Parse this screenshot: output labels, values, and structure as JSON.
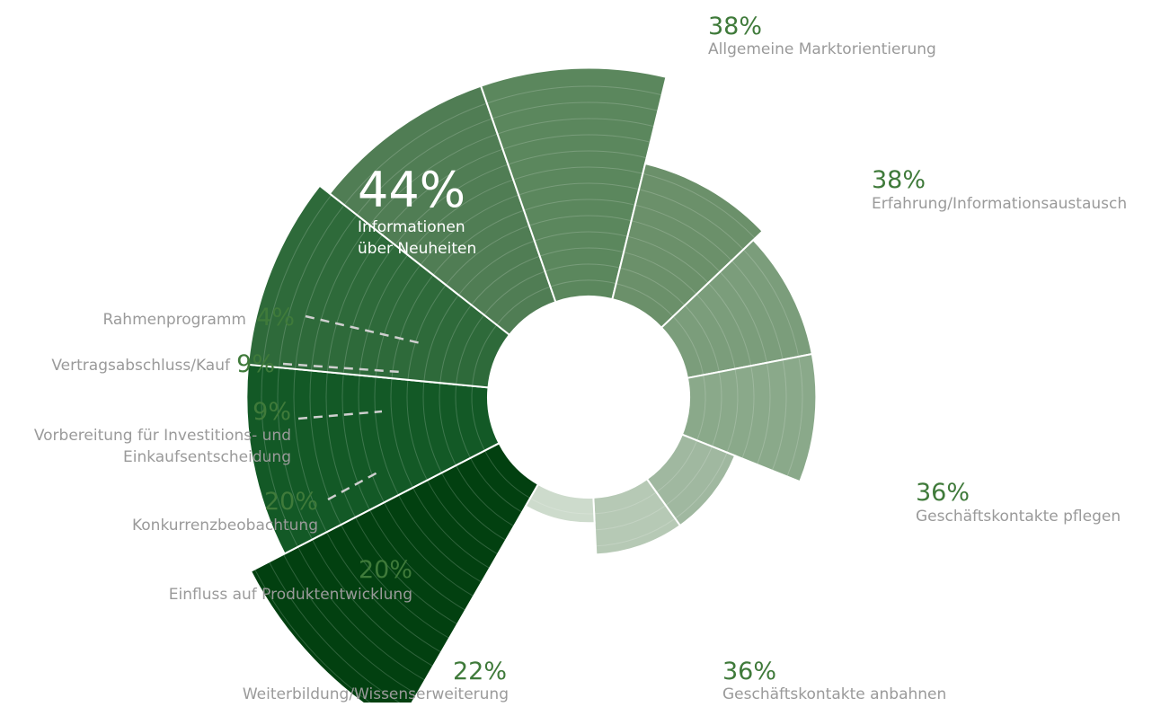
{
  "chart_data": {
    "type": "polar-area",
    "title": "",
    "segments": [
      {
        "label_lines": [
          "Informationen",
          "über Neuheiten"
        ],
        "value_text": "44%",
        "value": 44,
        "color": "#024010"
      },
      {
        "label_lines": [
          "Allgemeine Marktorientierung"
        ],
        "value_text": "38%",
        "value": 38,
        "color": "#135926"
      },
      {
        "label_lines": [
          "Erfahrung/Informationsaustausch"
        ],
        "value_text": "38%",
        "value": 38,
        "color": "#2e6a3a"
      },
      {
        "label_lines": [
          "Geschäftskontakte pflegen"
        ],
        "value_text": "36%",
        "value": 36,
        "color": "#507d54"
      },
      {
        "label_lines": [
          "Geschäftskontakte anbahnen"
        ],
        "value_text": "36%",
        "value": 36,
        "color": "#5b875d"
      },
      {
        "label_lines": [
          "Weiterbildung/Wissenserweiterung"
        ],
        "value_text": "22%",
        "value": 22,
        "color": "#6b906a"
      },
      {
        "label_lines": [
          "Einfluss auf Produktentwicklung"
        ],
        "value_text": "20%",
        "value": 20,
        "color": "#7b9d7b"
      },
      {
        "label_lines": [
          "Konkurrenzbeobachtung"
        ],
        "value_text": "20%",
        "value": 20,
        "color": "#8aa98a"
      },
      {
        "label_lines": [
          "Vorbereitung für Investitions- und",
          "Einkaufsentscheidung"
        ],
        "value_text": "9%",
        "value": 9,
        "color": "#a0b8a0"
      },
      {
        "label_lines": [
          "Vertragsabschluss/Kauf"
        ],
        "value_text": "9%",
        "value": 9,
        "color": "#b6c9b5"
      },
      {
        "label_lines": [
          "Rahmenprogramm"
        ],
        "value_text": "4%",
        "value": 4,
        "color": "#cddbcc"
      }
    ]
  }
}
